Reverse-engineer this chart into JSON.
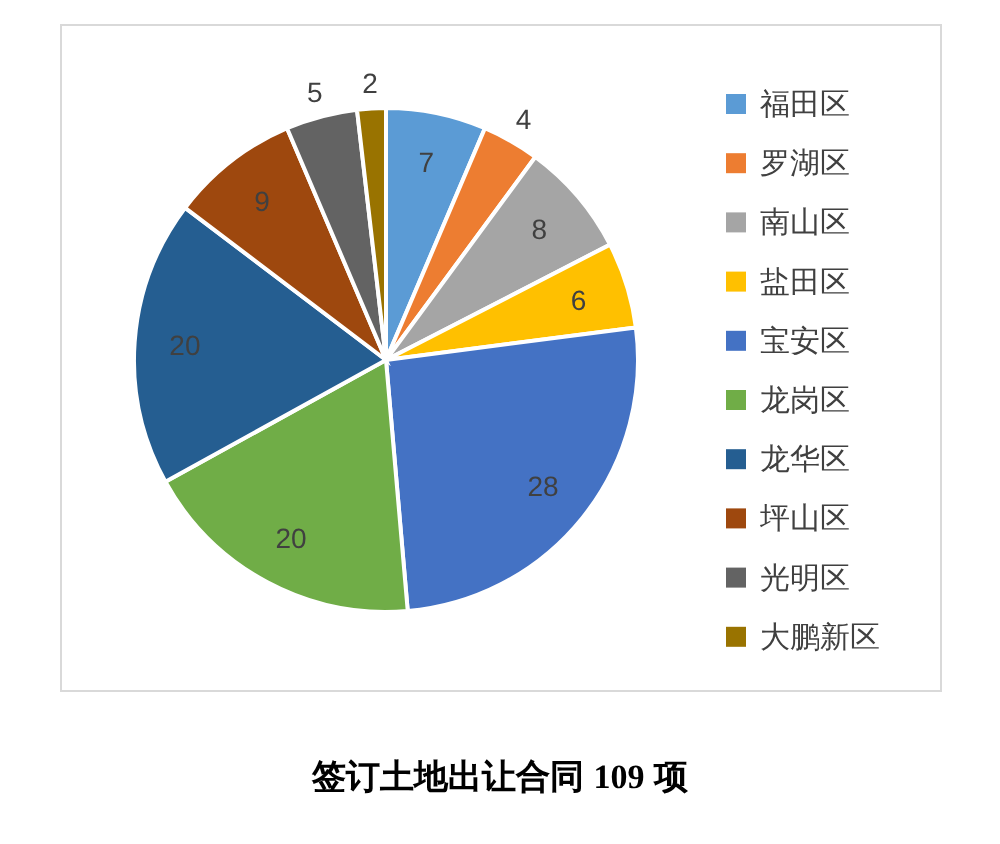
{
  "chart_data": {
    "type": "pie",
    "title": "签订土地出让合同 **109** 项",
    "categories": [
      "福田区",
      "罗湖区",
      "南山区",
      "盐田区",
      "宝安区",
      "龙岗区",
      "龙华区",
      "坪山区",
      "光明区",
      "大鹏新区"
    ],
    "values": [
      7,
      4,
      8,
      6,
      28,
      20,
      20,
      9,
      5,
      2
    ],
    "colors": [
      "#5b9bd5",
      "#ed7d31",
      "#a5a5a5",
      "#ffc000",
      "#4472c4",
      "#70ad47",
      "#255e91",
      "#9e480e",
      "#636363",
      "#997300"
    ],
    "data_labels": true,
    "legend": "right"
  }
}
